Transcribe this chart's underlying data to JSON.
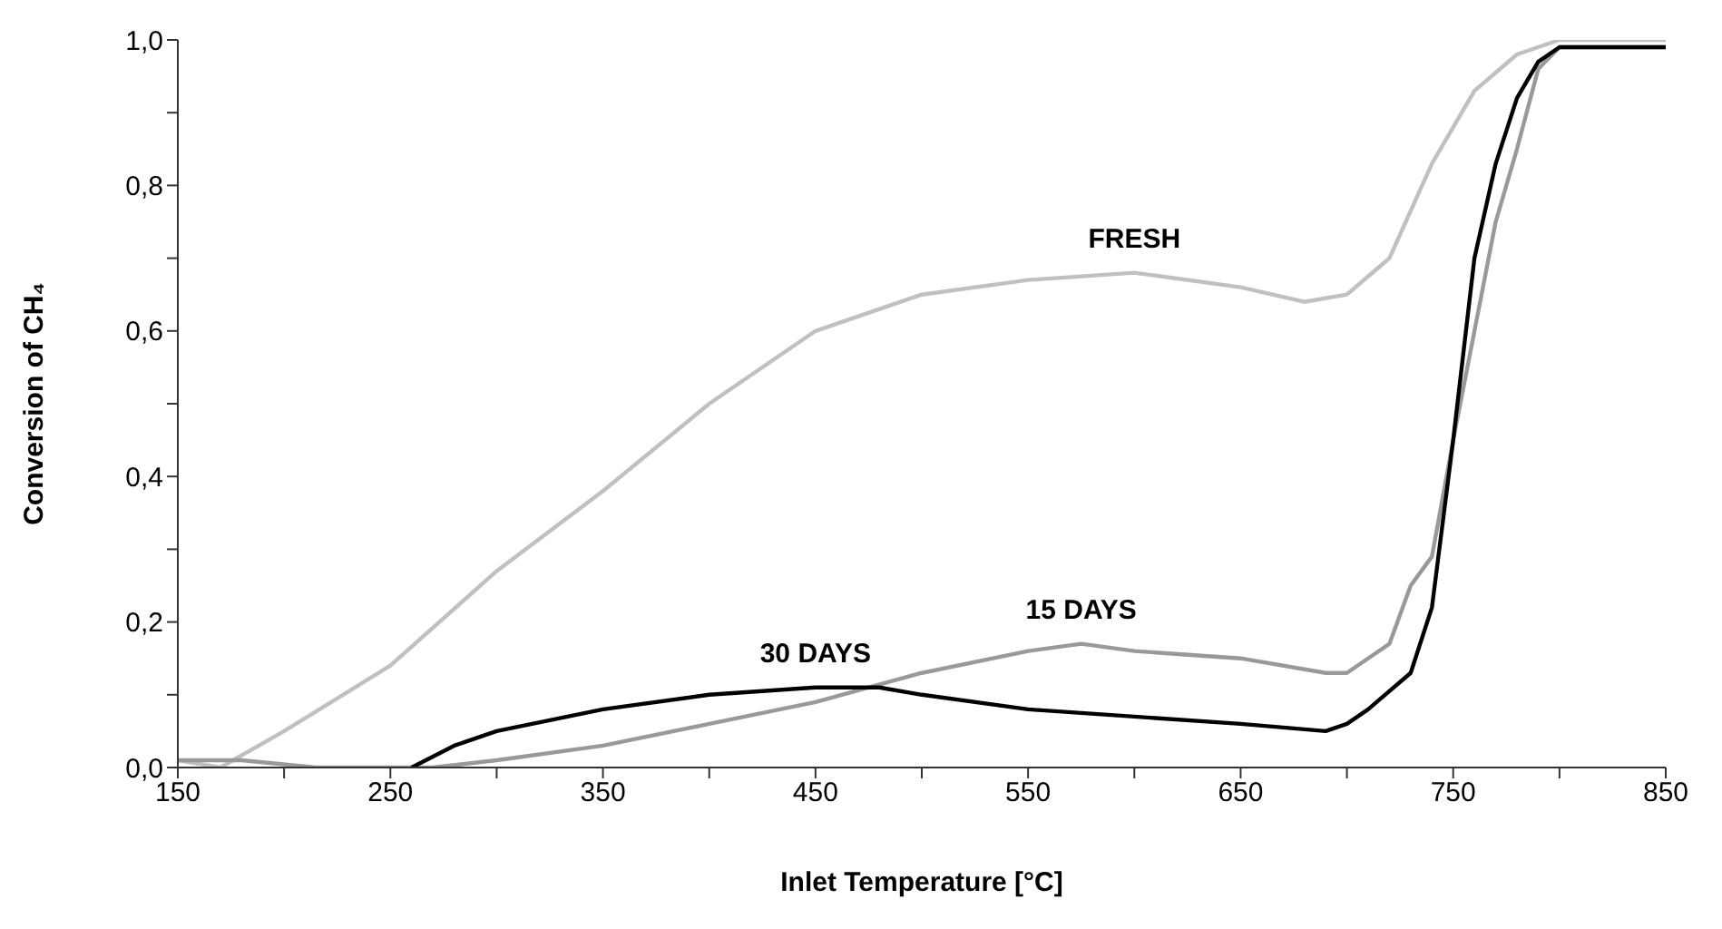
{
  "chart_data": {
    "type": "line",
    "xlabel": "Inlet Temperature [°C]",
    "ylabel": "Conversion of  CH₄",
    "xlim": [
      150,
      850
    ],
    "ylim": [
      0,
      1
    ],
    "xticks": [
      {
        "value": 150,
        "label": "150"
      },
      {
        "value": 200,
        "label": null
      },
      {
        "value": 250,
        "label": "250"
      },
      {
        "value": 300,
        "label": null
      },
      {
        "value": 350,
        "label": "350"
      },
      {
        "value": 400,
        "label": null
      },
      {
        "value": 450,
        "label": "450"
      },
      {
        "value": 500,
        "label": null
      },
      {
        "value": 550,
        "label": "550"
      },
      {
        "value": 600,
        "label": null
      },
      {
        "value": 650,
        "label": "650"
      },
      {
        "value": 700,
        "label": null
      },
      {
        "value": 750,
        "label": "750"
      },
      {
        "value": 800,
        "label": null
      },
      {
        "value": 850,
        "label": "850"
      }
    ],
    "yticks": [
      {
        "value": 0,
        "label": "0,0"
      },
      {
        "value": 0.1,
        "label": null
      },
      {
        "value": 0.2,
        "label": "0,2"
      },
      {
        "value": 0.3,
        "label": null
      },
      {
        "value": 0.4,
        "label": "0,4"
      },
      {
        "value": 0.5,
        "label": null
      },
      {
        "value": 0.6,
        "label": "0,6"
      },
      {
        "value": 0.7,
        "label": null
      },
      {
        "value": 0.8,
        "label": "0,8"
      },
      {
        "value": 0.9,
        "label": null
      },
      {
        "value": 1,
        "label": "1,0"
      }
    ],
    "grid": false,
    "legend": false,
    "series": [
      {
        "name": "FRESH",
        "color": "#c0c0c0",
        "x": [
          150,
          170,
          200,
          250,
          300,
          350,
          400,
          450,
          500,
          550,
          600,
          650,
          680,
          700,
          720,
          740,
          760,
          780,
          800,
          850
        ],
        "values": [
          0.01,
          0.0,
          0.05,
          0.14,
          0.27,
          0.38,
          0.5,
          0.6,
          0.65,
          0.67,
          0.68,
          0.66,
          0.64,
          0.65,
          0.7,
          0.83,
          0.93,
          0.98,
          1.0,
          1.0
        ]
      },
      {
        "name": "15 DAYS",
        "color": "#999999",
        "x": [
          150,
          180,
          215,
          270,
          300,
          350,
          400,
          450,
          500,
          550,
          575,
          600,
          650,
          690,
          700,
          720,
          730,
          740,
          750,
          760,
          770,
          780,
          790,
          800,
          850
        ],
        "values": [
          0.01,
          0.01,
          0.0,
          0.0,
          0.01,
          0.03,
          0.06,
          0.09,
          0.13,
          0.16,
          0.17,
          0.16,
          0.15,
          0.13,
          0.13,
          0.17,
          0.25,
          0.29,
          0.45,
          0.6,
          0.75,
          0.85,
          0.96,
          0.99,
          0.99
        ]
      },
      {
        "name": "30 DAYS",
        "color": "#000000",
        "x": [
          260,
          280,
          300,
          350,
          400,
          450,
          480,
          500,
          550,
          600,
          650,
          690,
          700,
          710,
          730,
          740,
          750,
          760,
          770,
          780,
          790,
          800,
          850
        ],
        "values": [
          0.0,
          0.03,
          0.05,
          0.08,
          0.1,
          0.11,
          0.11,
          0.1,
          0.08,
          0.07,
          0.06,
          0.05,
          0.06,
          0.08,
          0.13,
          0.22,
          0.45,
          0.7,
          0.83,
          0.92,
          0.97,
          0.99,
          0.99
        ]
      }
    ]
  }
}
